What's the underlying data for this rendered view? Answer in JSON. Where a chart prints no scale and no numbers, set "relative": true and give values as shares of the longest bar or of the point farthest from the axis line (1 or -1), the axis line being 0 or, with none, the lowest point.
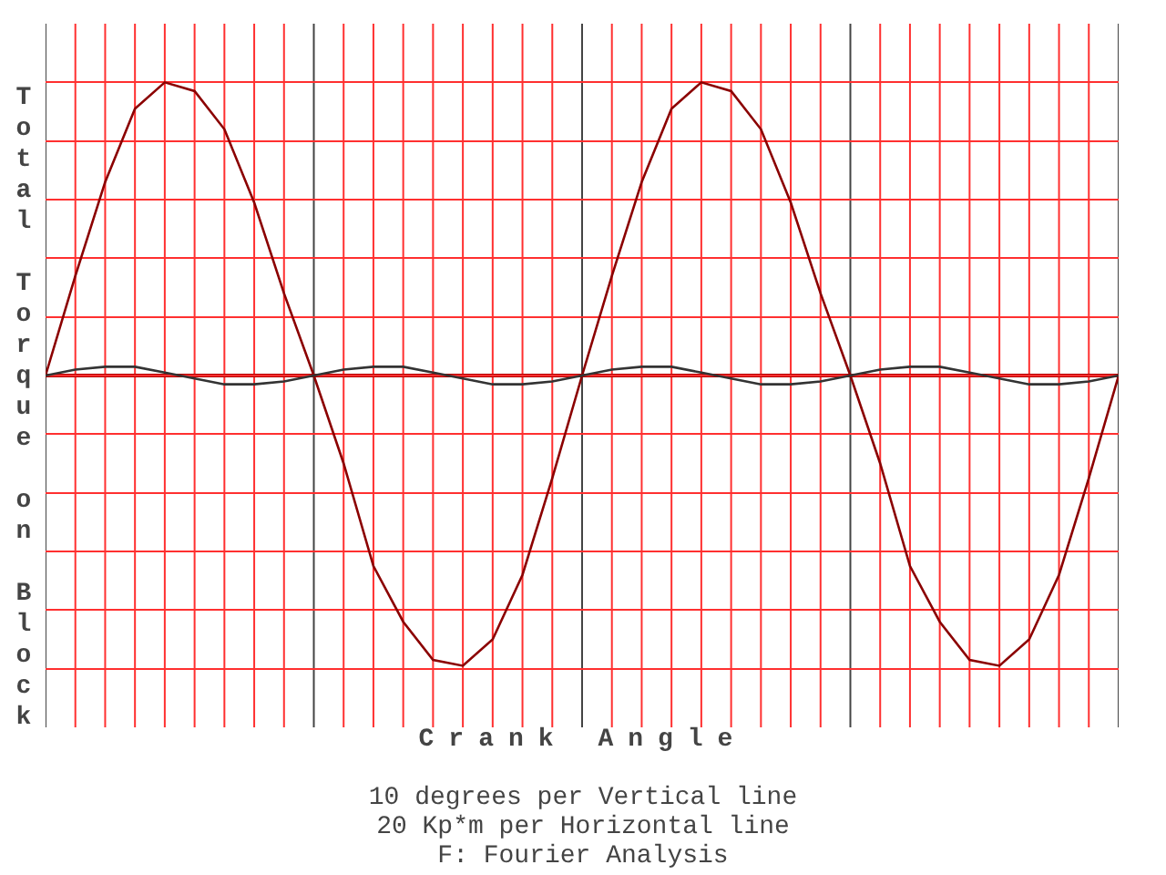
{
  "chart_data": {
    "type": "line",
    "relative": true,
    "xlabel": "Crank Angle",
    "ylabel": "Total Torque on Block",
    "annotations": [
      "10 degrees per Vertical line",
      "20 Kp*m per Horizontal line",
      "F: Fourier Analysis"
    ],
    "categories": [
      null,
      null,
      null,
      null,
      null,
      null,
      null,
      null,
      null,
      null,
      null,
      null,
      null,
      null,
      null,
      null,
      null,
      null,
      null,
      null,
      null,
      null,
      null,
      null,
      null,
      null,
      null,
      null,
      null,
      null,
      null,
      null,
      null,
      null,
      null,
      null,
      null
    ],
    "series": [
      {
        "color": "#8b0000",
        "values": [
          0,
          0.34,
          0.66,
          0.91,
          1,
          0.97,
          0.84,
          0.59,
          0.28,
          0,
          -0.3,
          -0.65,
          -0.84,
          -0.97,
          -0.99,
          -0.9,
          -0.68,
          -0.35,
          0,
          0.34,
          0.66,
          0.91,
          1,
          0.97,
          0.84,
          0.59,
          0.28,
          0,
          -0.3,
          -0.65,
          -0.84,
          -0.97,
          -0.99,
          -0.9,
          -0.68,
          -0.35,
          0
        ]
      },
      {
        "color": "#333333",
        "values": [
          0,
          0.02,
          0.03,
          0.03,
          0.01,
          -0.01,
          -0.03,
          -0.03,
          -0.02,
          0,
          0.02,
          0.03,
          0.03,
          0.01,
          -0.01,
          -0.03,
          -0.03,
          -0.02,
          0,
          0.02,
          0.03,
          0.03,
          0.01,
          -0.01,
          -0.03,
          -0.03,
          -0.02,
          0,
          0.02,
          0.03,
          0.03,
          0.01,
          -0.01,
          -0.03,
          -0.03,
          -0.02,
          0
        ]
      }
    ],
    "ref_lines": [
      {
        "axis": "y",
        "value": 0,
        "color": "#b00000"
      }
    ],
    "grid": true,
    "marker": "none",
    "line_style": "solid"
  }
}
